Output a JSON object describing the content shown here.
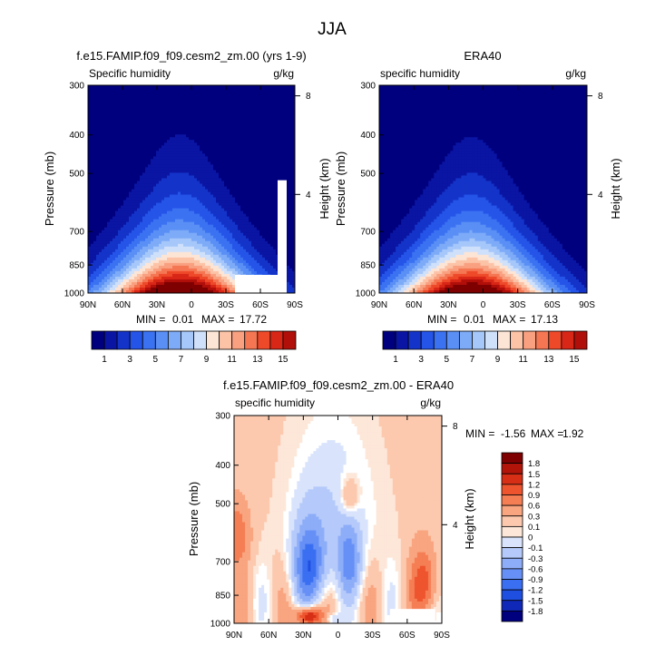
{
  "figure": {
    "title": "JJA"
  },
  "colors": {
    "abs_palette": [
      "#00007f",
      "#0a15a3",
      "#1434c9",
      "#2554e8",
      "#3b72f2",
      "#5a8ff5",
      "#7eabf7",
      "#a6c7fa",
      "#cfe0fb",
      "#fde5d6",
      "#fcc3a7",
      "#f9a080",
      "#f57653",
      "#ee4a2a",
      "#d82617",
      "#b10f0a",
      "#7f0000"
    ],
    "diff_palette": [
      "#00007f",
      "#1028b8",
      "#1f4fe0",
      "#3b6ff2",
      "#6690f5",
      "#8dadf8",
      "#b5cafa",
      "#d9e4fc",
      "#ffffff",
      "#fde7d9",
      "#fcc9ae",
      "#f9a580",
      "#f57e55",
      "#ee552e",
      "#d72e16",
      "#b3140a",
      "#7f0000"
    ],
    "missing": "#ffffff",
    "frame": "#000000"
  },
  "chart_data": [
    {
      "type": "heatmap",
      "title": "f.e15.FAMIP.f09_f09.cesm2_zm.00 (yrs 1-9)",
      "left_label": "Specific humidity",
      "right_label": "g/kg",
      "ylabel": "Pressure (mb)",
      "ylabel_right": "Height (km)",
      "x_ticks": [
        "90N",
        "60N",
        "30N",
        "0",
        "30S",
        "60S",
        "90S"
      ],
      "x_range": [
        90,
        -90
      ],
      "y_ticks": [
        "300",
        "400",
        "500",
        "700",
        "850",
        "1000"
      ],
      "y_range": [
        1000,
        300
      ],
      "y_scale": "log",
      "height_ticks": [
        "4",
        "8"
      ],
      "stats": {
        "min_label": "MIN =",
        "min": "0.01",
        "max_label": "MAX =",
        "max": "17.72"
      },
      "colorbar": {
        "labels": [
          "1",
          "3",
          "5",
          "7",
          "9",
          "11",
          "13",
          "15"
        ],
        "orientation": "horizontal"
      },
      "peak_lat": 10,
      "peak_value": 17.72
    },
    {
      "type": "heatmap",
      "title": "ERA40",
      "left_label": "specific humidity",
      "right_label": "g/kg",
      "ylabel": "Pressure (mb)",
      "ylabel_right": "Height (km)",
      "x_ticks": [
        "90N",
        "60N",
        "30N",
        "0",
        "30S",
        "60S",
        "90S"
      ],
      "x_range": [
        90,
        -90
      ],
      "y_ticks": [
        "300",
        "400",
        "500",
        "700",
        "850",
        "1000"
      ],
      "y_range": [
        1000,
        300
      ],
      "y_scale": "log",
      "height_ticks": [
        "4",
        "8"
      ],
      "stats": {
        "min_label": "MIN =",
        "min": "0.01",
        "max_label": "MAX =",
        "max": "17.13"
      },
      "colorbar": {
        "labels": [
          "1",
          "3",
          "5",
          "7",
          "9",
          "11",
          "13",
          "15"
        ],
        "orientation": "horizontal"
      },
      "peak_lat": 10,
      "peak_value": 17.13
    },
    {
      "type": "heatmap",
      "title": "f.e15.FAMIP.f09_f09.cesm2_zm.00 - ERA40",
      "left_label": "specific humidity",
      "right_label": "g/kg",
      "ylabel": "Pressure (mb)",
      "ylabel_right": "Height (km)",
      "x_ticks": [
        "90N",
        "60N",
        "30N",
        "0",
        "30S",
        "60S",
        "90S"
      ],
      "x_range": [
        90,
        -90
      ],
      "y_ticks": [
        "300",
        "400",
        "500",
        "700",
        "850",
        "1000"
      ],
      "y_range": [
        1000,
        300
      ],
      "y_scale": "log",
      "height_ticks": [
        "4",
        "8"
      ],
      "stats": {
        "min_label": "MIN =",
        "min": "-1.56",
        "max_label": "MAX =",
        "max": "1.92"
      },
      "colorbar": {
        "labels": [
          "1.8",
          "1.5",
          "1.2",
          "0.9",
          "0.6",
          "0.3",
          "0.1",
          "0",
          "-0.1",
          "-0.3",
          "-0.6",
          "-0.9",
          "-1.2",
          "-1.5",
          "-1.8"
        ],
        "orientation": "vertical"
      }
    }
  ]
}
